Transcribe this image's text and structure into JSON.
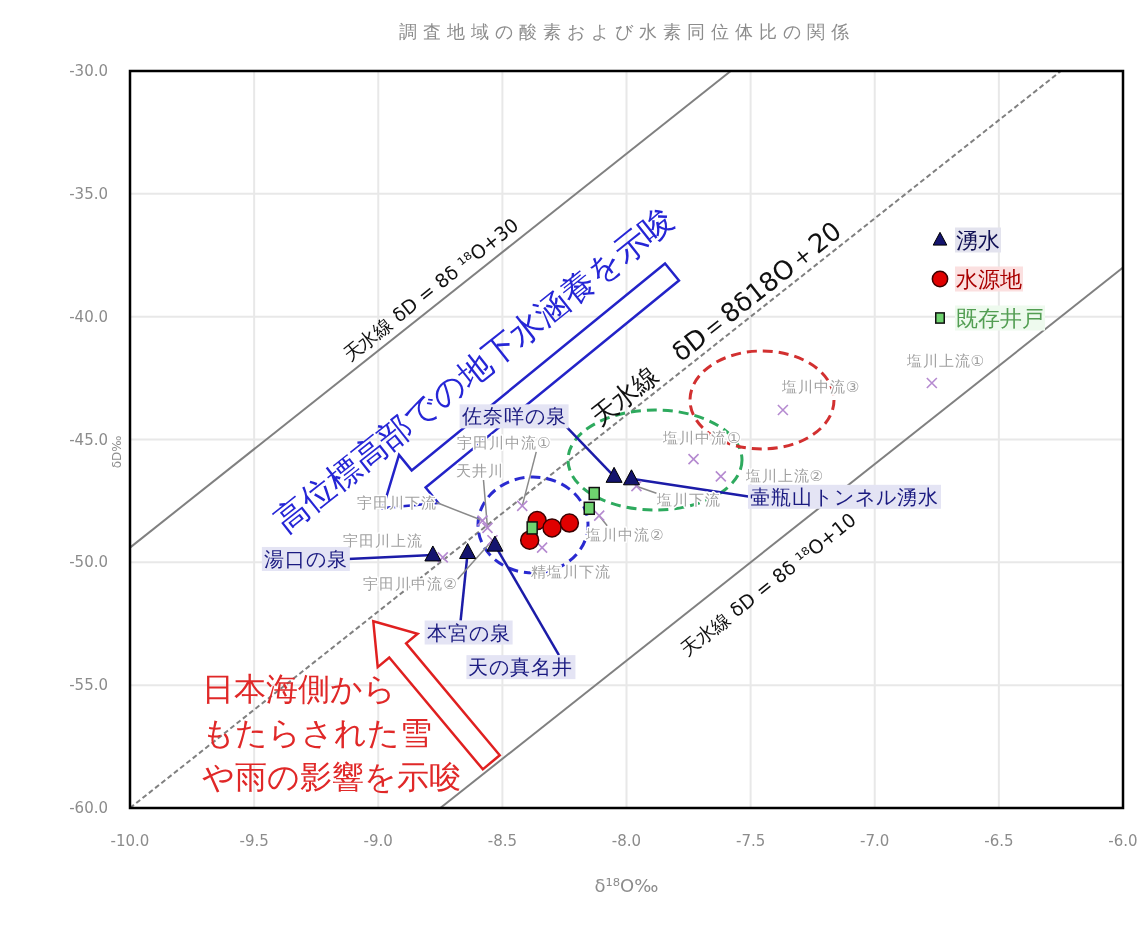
{
  "chart_data": {
    "type": "scatter",
    "title": "調査地域の酸素および水素同位体比の関係",
    "xlabel": "δ¹⁸O‰",
    "ylabel": "δD‰",
    "xlim": [
      -10,
      -6
    ],
    "xticks": [
      {
        "value": -10,
        "label": "-10.0"
      },
      {
        "value": -9.5,
        "label": "-9.5"
      },
      {
        "value": -9,
        "label": "-9.0"
      },
      {
        "value": -8.5,
        "label": "-8.5"
      },
      {
        "value": -8,
        "label": "-8.0"
      },
      {
        "value": -7.5,
        "label": "-7.5"
      },
      {
        "value": -7,
        "label": "-7.0"
      },
      {
        "value": -6.5,
        "label": "-6.5"
      },
      {
        "value": -6,
        "label": "-6.0"
      }
    ],
    "ylim": [
      -60,
      -30
    ],
    "yticks": [
      {
        "value": -60,
        "label": "-60.0"
      },
      {
        "value": -55,
        "label": "-55.0"
      },
      {
        "value": -50,
        "label": "-50.0"
      },
      {
        "value": -45,
        "label": "-45.0"
      },
      {
        "value": -40,
        "label": "-40.0"
      },
      {
        "value": -35,
        "label": "-35.0"
      },
      {
        "value": -30,
        "label": "-30.0"
      }
    ],
    "grid": true,
    "legend": "top right",
    "series": [
      {
        "type": "line",
        "color": "#808080",
        "line_style": "solid",
        "marker": "none",
        "x": [
          -10,
          -7.58
        ],
        "values": [
          -49.4,
          -30
        ]
      },
      {
        "type": "line",
        "color": "#808080",
        "line_style": "dashed",
        "marker": "none",
        "x": [
          -10,
          -6.25
        ],
        "values": [
          -60,
          -30
        ]
      },
      {
        "type": "line",
        "color": "#808080",
        "line_style": "solid",
        "marker": "none",
        "x": [
          -8.75,
          -6
        ],
        "values": [
          -60,
          -38
        ]
      },
      {
        "color": "#b58ad0",
        "marker": "cross",
        "x": [
          -8.74,
          -8.58,
          -8.56,
          -8.42,
          -8.54,
          -8.34,
          -8.11,
          -7.96,
          -7.73,
          -7.62,
          -7.37,
          -6.77
        ],
        "values": [
          -49.8,
          -48.3,
          -48.6,
          -47.7,
          -49.1,
          -49.4,
          -48.1,
          -46.9,
          -45.8,
          -46.5,
          -43.8,
          -42.7
        ]
      },
      {
        "name": "湧水",
        "color": "#14146e",
        "marker": "triangle",
        "x": [
          -8.78,
          -8.64,
          -8.53,
          -8.05,
          -7.98
        ],
        "values": [
          -49.7,
          -49.6,
          -49.3,
          -46.5,
          -46.6
        ]
      },
      {
        "name": "水源地",
        "color": "#e00000",
        "marker": "circle",
        "x": [
          -8.39,
          -8.36,
          -8.3,
          -8.23
        ],
        "values": [
          -49.1,
          -48.3,
          -48.6,
          -48.4
        ]
      },
      {
        "name": "既存井戸",
        "color": "#6fd36f",
        "marker": "square",
        "x": [
          -8.38,
          -8.15,
          -8.13
        ],
        "values": [
          -48.6,
          -47.8,
          -47.2
        ]
      }
    ],
    "annotations": [
      {
        "text": "天水線 δD = 8δ ¹⁸O+30",
        "x": -8.75,
        "y": -39.4
      },
      {
        "text": "天水線　δD＝8δ18O＋20",
        "x": -7.6,
        "y": -40.8
      },
      {
        "text": "天水線 δD = 8δ ¹⁸O+10",
        "x": -7.5,
        "y": -50
      },
      {
        "text": "湯口の泉",
        "x": -8.78,
        "y": -49.7
      },
      {
        "text": "本宮の泉",
        "x": -8.64,
        "y": -49.6
      },
      {
        "text": "天の真名井",
        "x": -8.53,
        "y": -49.3
      },
      {
        "text": "佐奈咩の泉",
        "x": -8.05,
        "y": -46.5
      },
      {
        "text": "壷瓶山トンネル湧水",
        "x": -7.98,
        "y": -46.6
      },
      {
        "text": "宇田川上流",
        "x": -8.74,
        "y": -49.8
      },
      {
        "text": "宇田川下流",
        "x": -8.58,
        "y": -48.3
      },
      {
        "text": "天井川",
        "x": -8.56,
        "y": -48.6
      },
      {
        "text": "宇田川中流①",
        "x": -8.42,
        "y": -47.7
      },
      {
        "text": "宇田川中流②",
        "x": -8.54,
        "y": -49.1
      },
      {
        "text": "精塩川下流",
        "x": -8.34,
        "y": -49.4
      },
      {
        "text": "塩川中流②",
        "x": -8.11,
        "y": -48.1
      },
      {
        "text": "塩川下流",
        "x": -7.96,
        "y": -46.9
      },
      {
        "text": "塩川中流①",
        "x": -7.73,
        "y": -45.8
      },
      {
        "text": "塩川上流②",
        "x": -7.62,
        "y": -46.5
      },
      {
        "text": "塩川中流③",
        "x": -7.37,
        "y": -43.8
      },
      {
        "text": "塩川上流①",
        "x": -6.77,
        "y": -42.7
      },
      "高位標高部での地下水涵養を示唆",
      {
        "text": "日本海側からもたらされた雪や雨の影響を示唆",
        "x": -9.02,
        "y": -52.4
      }
    ]
  }
}
